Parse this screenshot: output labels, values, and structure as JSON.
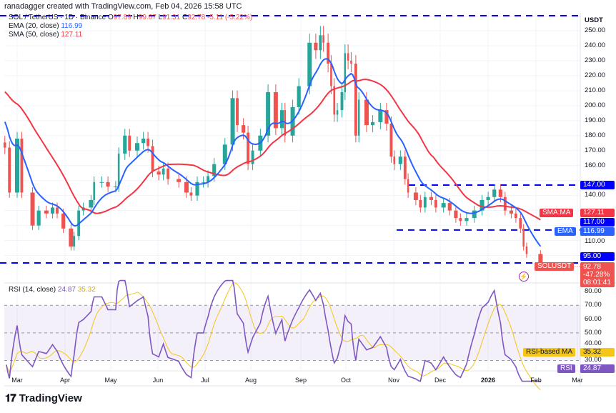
{
  "header": {
    "credit": "ranadagger created with TradingView.com, Feb 04, 2026 15:58 UTC",
    "symbol_line": "SOL / TetherUS · 1D · Binance",
    "ohlc": {
      "o_label": "O",
      "o": "97.89",
      "h_label": "H",
      "h": "99.67",
      "l_label": "L",
      "l": "91.31",
      "c_label": "C",
      "c": "92.78",
      "change": "-5.11 (-5.22%)"
    },
    "ema_label": "EMA (20, close)",
    "ema_value": "116.99",
    "sma_label": "SMA (50, close)",
    "sma_value": "127.11"
  },
  "price_axis": {
    "currency": "USDT",
    "ticks": [
      "250.00",
      "240.00",
      "230.00",
      "220.00",
      "210.00",
      "200.00",
      "190.00",
      "180.00",
      "170.00",
      "160.00",
      "140.00",
      "110.00"
    ],
    "tags": {
      "level_147": "147.00",
      "sma_name": "SMA:MA",
      "sma": "127.11",
      "level_117": "117.00",
      "ema_name": "EMA",
      "ema": "116.99",
      "level_95": "95.00",
      "symbol": "SOLUSDT",
      "last": "92.78",
      "last_change": "-47.28%",
      "countdown": "08:01:41"
    }
  },
  "rsi": {
    "label": "RSI (14, close)",
    "value": "24.87",
    "ma_value": "35.32",
    "ticks": [
      "80.00",
      "70.00",
      "60.00",
      "50.00",
      "40.00",
      "30.00"
    ],
    "ma_tag": "RSI-based MA",
    "rsi_tag": "RSI"
  },
  "time_axis": [
    "Mar",
    "Apr",
    "May",
    "Jun",
    "Jul",
    "Aug",
    "Sep",
    "Oct",
    "Nov",
    "Dec",
    "2026",
    "Feb",
    "Mar"
  ],
  "footer": {
    "brand": "TradingView"
  },
  "colors": {
    "up": "#26a69a",
    "down": "#ef5350",
    "ema": "#2962ff",
    "sma": "#f23645",
    "rsi": "#7e57c2",
    "rsi_ma": "#f5c518",
    "levels": "#0000ff"
  },
  "chart_data": {
    "type": "candlestick",
    "symbol": "SOL / TetherUS",
    "interval": "1D",
    "scale": "linear",
    "ylim": [
      88,
      262
    ],
    "horizontal_levels": [
      260,
      147,
      117,
      95
    ],
    "ema20_start": 191,
    "sma50_start": 210,
    "closes": [
      [
        "2025-02-21",
        172
      ],
      [
        "2025-02-24",
        142
      ],
      [
        "2025-03-01",
        178
      ],
      [
        "2025-03-04",
        142
      ],
      [
        "2025-03-11",
        120
      ],
      [
        "2025-03-15",
        130
      ],
      [
        "2025-03-20",
        128
      ],
      [
        "2025-03-24",
        132
      ],
      [
        "2025-03-27",
        128
      ],
      [
        "2025-03-31",
        118
      ],
      [
        "2025-04-05",
        106
      ],
      [
        "2025-04-07",
        113
      ],
      [
        "2025-04-10",
        130
      ],
      [
        "2025-04-13",
        132
      ],
      [
        "2025-04-18",
        137
      ],
      [
        "2025-04-20",
        149
      ],
      [
        "2025-04-25",
        149
      ],
      [
        "2025-04-29",
        146
      ],
      [
        "2025-05-04",
        146
      ],
      [
        "2025-05-06",
        168
      ],
      [
        "2025-05-10",
        180
      ],
      [
        "2025-05-13",
        170
      ],
      [
        "2025-05-18",
        175
      ],
      [
        "2025-05-22",
        178
      ],
      [
        "2025-05-25",
        173
      ],
      [
        "2025-05-28",
        156
      ],
      [
        "2025-06-01",
        154
      ],
      [
        "2025-06-04",
        158
      ],
      [
        "2025-06-07",
        151
      ],
      [
        "2025-06-14",
        149
      ],
      [
        "2025-06-19",
        142
      ],
      [
        "2025-06-22",
        140
      ],
      [
        "2025-06-26",
        149
      ],
      [
        "2025-06-30",
        149
      ],
      [
        "2025-07-03",
        153
      ],
      [
        "2025-07-07",
        161
      ],
      [
        "2025-07-14",
        174
      ],
      [
        "2025-07-19",
        205
      ],
      [
        "2025-07-22",
        187
      ],
      [
        "2025-07-26",
        182
      ],
      [
        "2025-07-29",
        161
      ],
      [
        "2025-08-01",
        170
      ],
      [
        "2025-08-06",
        180
      ],
      [
        "2025-08-11",
        209
      ],
      [
        "2025-08-16",
        185
      ],
      [
        "2025-08-20",
        197
      ],
      [
        "2025-08-22",
        180
      ],
      [
        "2025-08-27",
        199
      ],
      [
        "2025-08-31",
        213
      ],
      [
        "2025-09-07",
        242
      ],
      [
        "2025-09-11",
        237
      ],
      [
        "2025-09-14",
        247
      ],
      [
        "2025-09-16",
        242
      ],
      [
        "2025-09-19",
        228
      ],
      [
        "2025-09-21",
        213
      ],
      [
        "2025-09-23",
        194
      ],
      [
        "2025-09-25",
        197
      ],
      [
        "2025-09-28",
        209
      ],
      [
        "2025-09-30",
        235
      ],
      [
        "2025-10-02",
        230
      ],
      [
        "2025-10-04",
        228
      ],
      [
        "2025-10-07",
        180
      ],
      [
        "2025-10-09",
        204
      ],
      [
        "2025-10-14",
        187
      ],
      [
        "2025-10-18",
        189
      ],
      [
        "2025-10-23",
        197
      ],
      [
        "2025-10-27",
        188
      ],
      [
        "2025-10-30",
        166
      ],
      [
        "2025-11-01",
        161
      ],
      [
        "2025-11-05",
        166
      ],
      [
        "2025-11-08",
        151
      ],
      [
        "2025-11-10",
        142
      ],
      [
        "2025-11-15",
        137
      ],
      [
        "2025-11-18",
        132
      ],
      [
        "2025-11-21",
        139
      ],
      [
        "2025-11-25",
        137
      ],
      [
        "2025-11-28",
        132
      ],
      [
        "2025-12-03",
        135
      ],
      [
        "2025-12-07",
        130
      ],
      [
        "2025-12-11",
        125
      ],
      [
        "2025-12-14",
        123
      ],
      [
        "2025-12-18",
        125
      ],
      [
        "2025-12-23",
        130
      ],
      [
        "2025-12-28",
        137
      ],
      [
        "2026-01-01",
        139
      ],
      [
        "2026-01-05",
        144
      ],
      [
        "2026-01-09",
        139
      ],
      [
        "2026-01-12",
        130
      ],
      [
        "2026-01-16",
        128
      ],
      [
        "2026-01-19",
        125
      ],
      [
        "2026-01-22",
        118
      ],
      [
        "2026-01-24",
        106
      ],
      [
        "2026-01-26",
        101
      ],
      [
        "2026-02-04",
        92.78
      ]
    ]
  }
}
